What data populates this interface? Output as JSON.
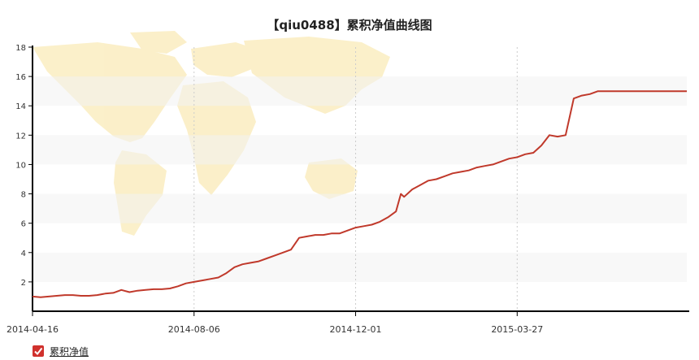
{
  "chart_data": {
    "type": "line",
    "title": "【qiu0488】累积净值曲线图",
    "xlabel": "",
    "ylabel": "",
    "x_tick_labels": [
      "2014-04-16",
      "2014-08-06",
      "2014-12-01",
      "2015-03-27"
    ],
    "ylim": [
      0,
      18
    ],
    "y_ticks": [
      2,
      4,
      6,
      8,
      10,
      12,
      14,
      16,
      18
    ],
    "grid": "banded",
    "legend_position": "bottom-left",
    "series": [
      {
        "name": "累积净值",
        "color": "#c0392b",
        "x_index": [
          0,
          5,
          10,
          15,
          20,
          25,
          30,
          35,
          40,
          45,
          50,
          55,
          60,
          65,
          70,
          75,
          80,
          85,
          90,
          95,
          100,
          105,
          110,
          115,
          120,
          125,
          130,
          135,
          140,
          145,
          150,
          155,
          160,
          165,
          170,
          175,
          180,
          185,
          190,
          195,
          200,
          205,
          210,
          215,
          220,
          225,
          228,
          230,
          235,
          240,
          245,
          250,
          255,
          260,
          265,
          270,
          275,
          280,
          285,
          290,
          295,
          300,
          305,
          310,
          315,
          320,
          325,
          330,
          335,
          340,
          345,
          350,
          355,
          360,
          365,
          370,
          375,
          380,
          385,
          390,
          392,
          395,
          398,
          400,
          402,
          405
        ],
        "values": [
          1.0,
          0.95,
          1.0,
          1.05,
          1.1,
          1.1,
          1.05,
          1.05,
          1.1,
          1.2,
          1.25,
          1.45,
          1.3,
          1.4,
          1.45,
          1.5,
          1.5,
          1.55,
          1.7,
          1.9,
          2.0,
          2.1,
          2.2,
          2.3,
          2.6,
          3.0,
          3.2,
          3.3,
          3.4,
          3.6,
          3.8,
          4.0,
          4.2,
          5.0,
          5.1,
          5.2,
          5.2,
          5.3,
          5.3,
          5.5,
          5.7,
          5.8,
          5.9,
          6.1,
          6.4,
          6.8,
          8.0,
          7.8,
          8.3,
          8.6,
          8.9,
          9.0,
          9.2,
          9.4,
          9.5,
          9.6,
          9.8,
          9.9,
          10.0,
          10.2,
          10.4,
          10.5,
          10.7,
          10.8,
          11.3,
          12.0,
          11.9,
          12.0,
          14.5,
          14.7,
          14.8,
          15.0,
          15.0,
          15.0,
          15.0,
          15.0,
          15.0,
          15.0,
          15.0,
          15.0,
          15.0,
          15.0,
          15.0,
          15.0,
          15.0,
          15.0
        ]
      }
    ]
  }
}
